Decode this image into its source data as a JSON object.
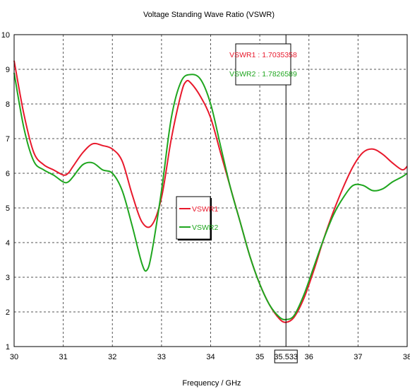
{
  "chart_data": {
    "type": "line",
    "title": "Voltage Standing Wave Ratio (VSWR)",
    "xlabel": "Frequency / GHz",
    "ylabel": "",
    "xlim": [
      30,
      38
    ],
    "ylim": [
      1,
      10
    ],
    "x_ticks": [
      "30",
      "31",
      "32",
      "33",
      "34",
      "35",
      "36",
      "37",
      "38"
    ],
    "y_ticks": [
      "1",
      "2",
      "3",
      "4",
      "5",
      "6",
      "7",
      "8",
      "9",
      "10"
    ],
    "grid": true,
    "legend_position": "center",
    "marker": {
      "x": 35.533,
      "x_label": "35.533",
      "readouts": [
        "VSWR1 : 1.7035358",
        "VSWR2 : 1.7826589"
      ]
    },
    "series": [
      {
        "name": "VSWR1",
        "color": "#e8192c",
        "x": [
          30,
          30.2,
          30.4,
          30.6,
          30.8,
          31,
          31.1,
          31.2,
          31.4,
          31.6,
          31.8,
          32,
          32.2,
          32.4,
          32.6,
          32.8,
          33,
          33.2,
          33.4,
          33.5,
          33.6,
          33.8,
          34,
          34.2,
          34.4,
          34.6,
          34.8,
          35,
          35.2,
          35.4,
          35.533,
          35.7,
          35.9,
          36.1,
          36.3,
          36.5,
          36.7,
          36.9,
          37.1,
          37.3,
          37.5,
          37.7,
          37.9,
          38
        ],
        "y": [
          9.25,
          7.7,
          6.6,
          6.25,
          6.1,
          5.95,
          6.0,
          6.2,
          6.6,
          6.85,
          6.8,
          6.7,
          6.35,
          5.4,
          4.6,
          4.5,
          5.3,
          7.0,
          8.3,
          8.65,
          8.6,
          8.2,
          7.6,
          6.6,
          5.6,
          4.6,
          3.6,
          2.8,
          2.2,
          1.8,
          1.7,
          1.85,
          2.4,
          3.2,
          4.1,
          4.9,
          5.6,
          6.2,
          6.6,
          6.7,
          6.55,
          6.3,
          6.1,
          6.2
        ]
      },
      {
        "name": "VSWR2",
        "color": "#1fa61f",
        "x": [
          30,
          30.2,
          30.4,
          30.6,
          30.8,
          31,
          31.1,
          31.2,
          31.4,
          31.6,
          31.8,
          32,
          32.2,
          32.4,
          32.6,
          32.7,
          32.8,
          33,
          33.2,
          33.4,
          33.6,
          33.8,
          34,
          34.2,
          34.4,
          34.6,
          34.8,
          35,
          35.2,
          35.4,
          35.533,
          35.7,
          35.9,
          36.1,
          36.3,
          36.5,
          36.7,
          36.9,
          37.1,
          37.3,
          37.5,
          37.7,
          37.9,
          38
        ],
        "y": [
          8.9,
          7.3,
          6.35,
          6.1,
          5.95,
          5.75,
          5.75,
          5.9,
          6.25,
          6.3,
          6.1,
          6.0,
          5.5,
          4.5,
          3.4,
          3.2,
          3.7,
          5.5,
          7.6,
          8.65,
          8.85,
          8.7,
          8.0,
          6.8,
          5.6,
          4.6,
          3.6,
          2.8,
          2.2,
          1.85,
          1.78,
          1.9,
          2.5,
          3.3,
          4.1,
          4.8,
          5.3,
          5.65,
          5.65,
          5.5,
          5.55,
          5.75,
          5.9,
          6.0
        ]
      }
    ]
  }
}
